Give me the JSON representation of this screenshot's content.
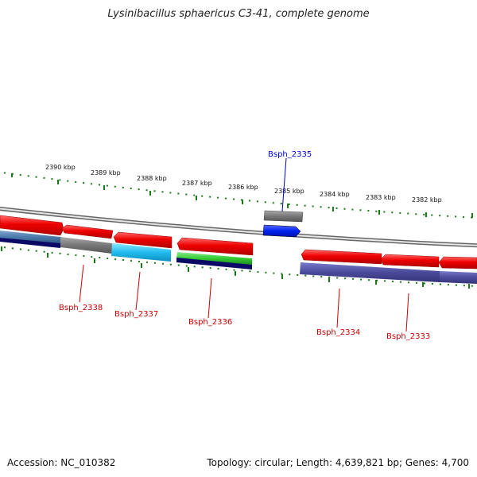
{
  "title": "Lysinibacillus sphaericus C3-41, complete genome",
  "footer": {
    "accession": "Accession: NC_010382",
    "stats": "Topology: circular; Length: 4,639,821 bp; Genes: 4,700"
  },
  "ticks": {
    "outer": [
      "2390 kbp",
      "2389 kbp",
      "2388 kbp",
      "2387 kbp",
      "2386 kbp",
      "2385 kbp",
      "2384 kbp",
      "2383 kbp",
      "2382 kbp"
    ]
  },
  "genes": {
    "bsph_2335": "Bsph_2335",
    "bsph_2338": "Bsph_2338",
    "bsph_2337": "Bsph_2337",
    "bsph_2336": "Bsph_2336",
    "bsph_2334": "Bsph_2334",
    "bsph_2333": "Bsph_2333"
  },
  "colors": {
    "forward_cds": "#ee0000",
    "reverse_cds": "#3333aa",
    "highlight_gene": "#0022ee",
    "label_red": "#cc0000",
    "label_blue": "#0000cc",
    "tick_green": "#1a7a1a",
    "backbone": "#888888"
  }
}
